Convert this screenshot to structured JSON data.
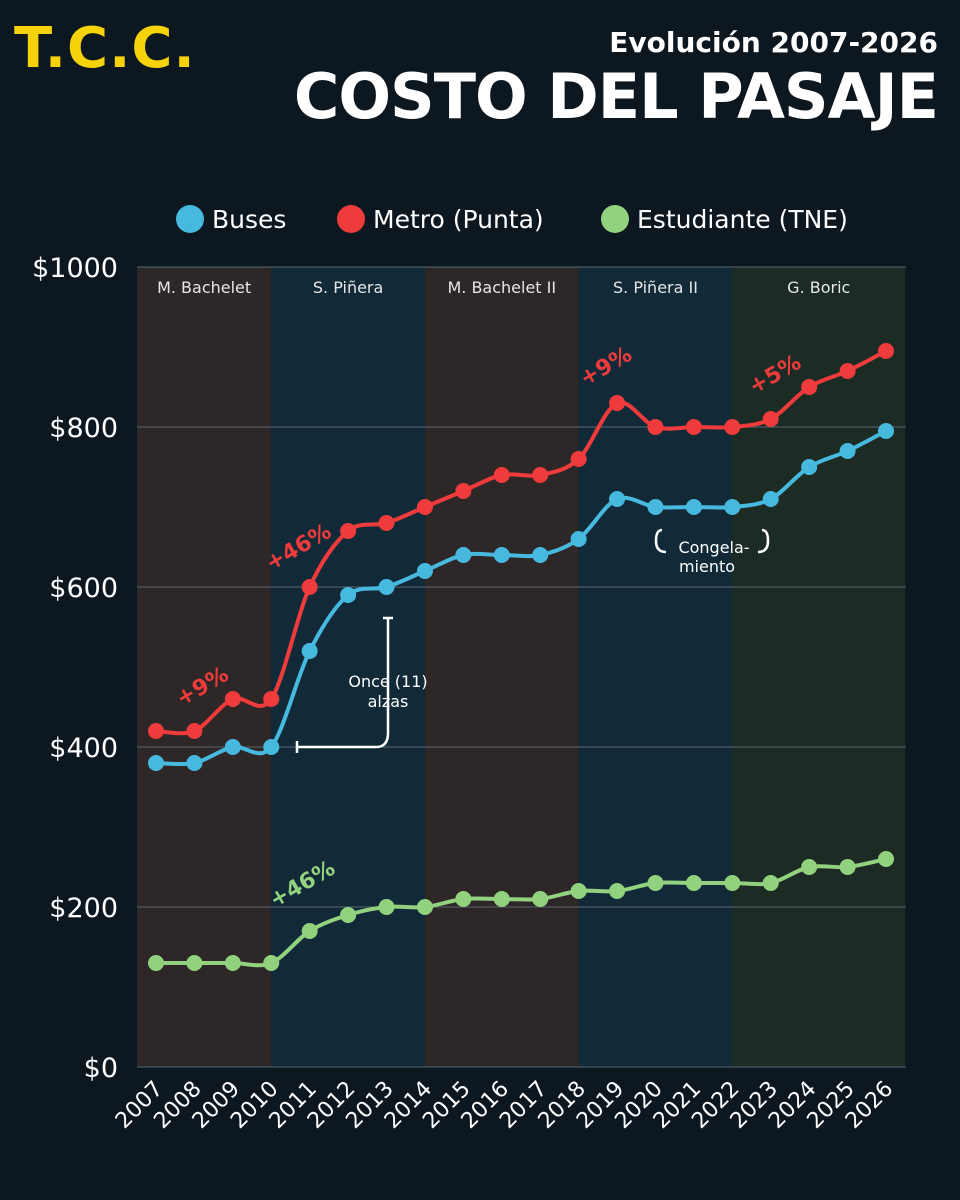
{
  "header": {
    "logo": "T.C.C.",
    "subtitle": "Evolución 2007-2026",
    "title": "COSTO DEL PASAJE"
  },
  "colors": {
    "background": "#0c1720",
    "logo": "#f5d20a",
    "buses": "#47b9df",
    "metro": "#ef3b3b",
    "estudiante": "#92d27f",
    "band_brown": "#2d2827",
    "band_blue": "#122a38",
    "band_green": "#1d2b25"
  },
  "chart_data": {
    "type": "line",
    "title": "COSTO DEL PASAJE",
    "subtitle": "Evolución 2007-2026",
    "ylim": [
      0,
      1000
    ],
    "ytick_values": [
      0,
      200,
      400,
      600,
      800,
      1000
    ],
    "ytick_labels": [
      "$0",
      "$200",
      "$400",
      "$600",
      "$800",
      "$1000"
    ],
    "grid": true,
    "legend_position": "top-center",
    "categories": [
      "2007",
      "2008",
      "2009",
      "2010",
      "2011",
      "2012",
      "2013",
      "2014",
      "2015",
      "2016",
      "2017",
      "2018",
      "2019",
      "2020",
      "2021",
      "2022",
      "2023",
      "2024",
      "2025",
      "2026"
    ],
    "series": [
      {
        "name": "Buses",
        "color": "#47b9df",
        "values": [
          380,
          380,
          400,
          400,
          520,
          590,
          600,
          620,
          640,
          640,
          640,
          660,
          710,
          700,
          700,
          700,
          710,
          750,
          770,
          795
        ]
      },
      {
        "name": "Metro (Punta)",
        "color": "#ef3b3b",
        "values": [
          420,
          420,
          460,
          460,
          600,
          670,
          680,
          700,
          720,
          740,
          740,
          760,
          830,
          800,
          800,
          800,
          810,
          850,
          870,
          895
        ]
      },
      {
        "name": "Estudiante (TNE)",
        "color": "#92d27f",
        "values": [
          130,
          130,
          130,
          130,
          170,
          190,
          200,
          200,
          210,
          210,
          210,
          220,
          220,
          230,
          230,
          230,
          230,
          250,
          250,
          260
        ]
      }
    ],
    "periods": [
      {
        "label": "M. Bachelet",
        "from": 2006.5,
        "to": 2010.0,
        "color": "#2d2827"
      },
      {
        "label": "S. Piñera",
        "from": 2010.0,
        "to": 2014.0,
        "color": "#122a38"
      },
      {
        "label": "M. Bachelet II",
        "from": 2014.0,
        "to": 2018.0,
        "color": "#2d2827"
      },
      {
        "label": "S. Piñera II",
        "from": 2018.0,
        "to": 2022.0,
        "color": "#122a38"
      },
      {
        "label": "G. Boric",
        "from": 2022.0,
        "to": 2026.5,
        "color": "#1d2b25"
      }
    ],
    "annotations": [
      {
        "text": "+9%",
        "color": "#ef3b3b",
        "x": 2008.3,
        "y": 468
      },
      {
        "text": "+46%",
        "color": "#ef3b3b",
        "x": 2010.8,
        "y": 642
      },
      {
        "text": "+9%",
        "color": "#ef3b3b",
        "x": 2018.8,
        "y": 868
      },
      {
        "text": "+5%",
        "color": "#ef3b3b",
        "x": 2023.2,
        "y": 858
      },
      {
        "text": "+46%",
        "color": "#92d27f",
        "x": 2010.9,
        "y": 221
      }
    ],
    "callouts": [
      {
        "lines": [
          "Once (11)",
          "alzas"
        ],
        "color": "#ffffff"
      },
      {
        "lines": [
          "Congela-",
          "miento"
        ],
        "color": "#ffffff"
      }
    ]
  }
}
